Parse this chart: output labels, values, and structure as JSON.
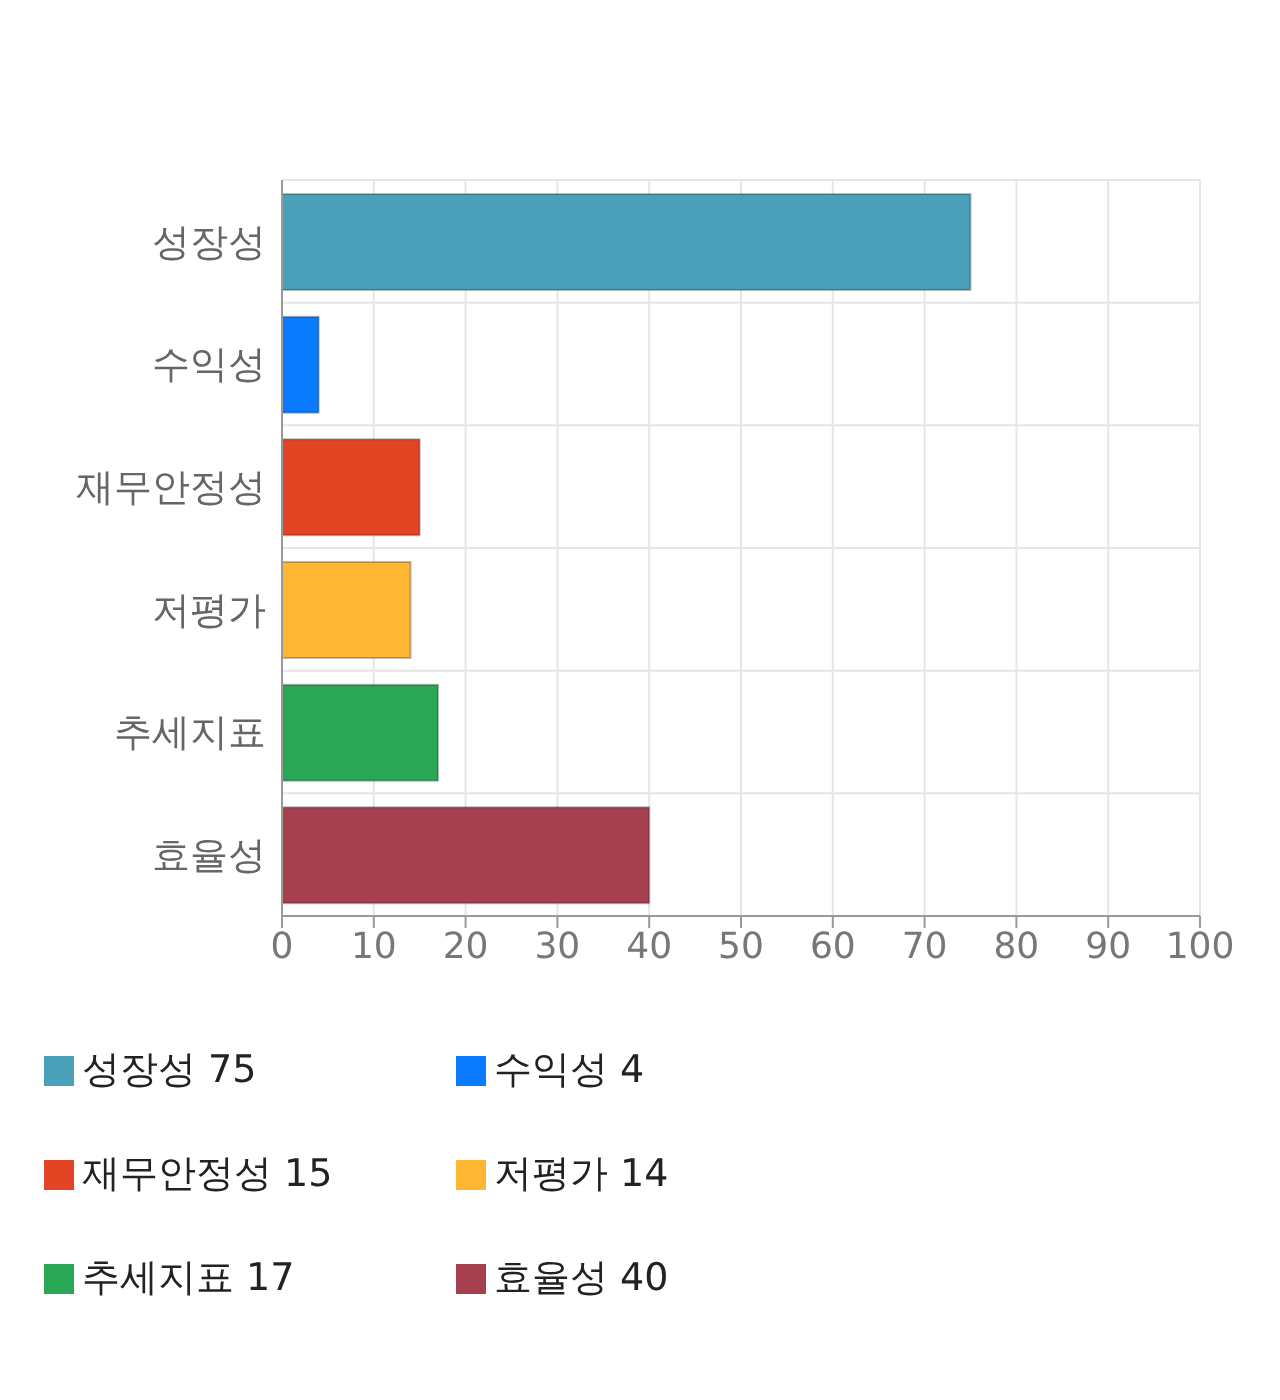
{
  "chart_data": {
    "type": "bar",
    "orientation": "horizontal",
    "stacked": true,
    "categories": [
      "성장성",
      "수익성",
      "재무안정성",
      "저평가",
      "추세지표",
      "효율성"
    ],
    "series": [
      {
        "name": "성장성 75",
        "color": "#4aa0b8",
        "values": [
          75,
          null,
          null,
          null,
          null,
          null
        ]
      },
      {
        "name": "수익성 4",
        "color": "#0a7bff",
        "values": [
          null,
          4,
          null,
          null,
          null,
          null
        ]
      },
      {
        "name": "재무안정성 15",
        "color": "#e24424",
        "values": [
          null,
          null,
          15,
          null,
          null,
          null
        ]
      },
      {
        "name": "저평가 14",
        "color": "#ffb733",
        "values": [
          null,
          null,
          null,
          14,
          null,
          null
        ]
      },
      {
        "name": "추세지표 17",
        "color": "#2aa755",
        "values": [
          null,
          null,
          null,
          null,
          17,
          null
        ]
      },
      {
        "name": "효율성 40",
        "color": "#a6404f",
        "values": [
          null,
          null,
          null,
          null,
          null,
          40
        ]
      }
    ],
    "xlim": [
      0,
      100
    ],
    "xticks": [
      0,
      10,
      20,
      30,
      40,
      50,
      60,
      70,
      80,
      90,
      100
    ],
    "grid": true,
    "legend": "bottom"
  }
}
